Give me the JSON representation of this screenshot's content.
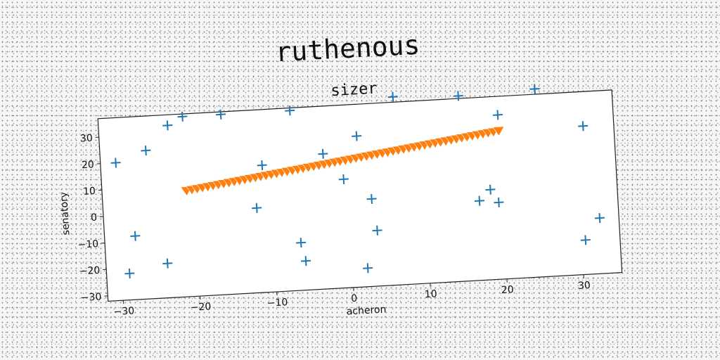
{
  "suptitle": "ruthenous",
  "chart_data": {
    "type": "scatter",
    "title": "sizer",
    "xlabel": "acheron",
    "ylabel": "senatory",
    "xlim": [
      -32,
      35
    ],
    "ylim": [
      -32,
      37
    ],
    "xticks": [
      -30,
      -20,
      -10,
      0,
      10,
      20,
      30
    ],
    "yticks": [
      -30,
      -20,
      -10,
      0,
      10,
      20,
      30
    ],
    "grid": false,
    "series": [
      {
        "marker": "plus",
        "color": "#1f77b4",
        "x": [
          -30,
          -29,
          -28,
          -26,
          -24,
          -23,
          -21,
          -16,
          -12,
          -11,
          -7,
          -6.5,
          -6,
          -3,
          -0.5,
          1.5,
          2,
          3,
          3.5,
          6.5,
          15,
          17,
          18.5,
          19.5,
          20,
          25,
          30.5,
          31,
          32.5
        ],
        "y": [
          20,
          -22,
          -8,
          24,
          -19,
          33,
          36,
          36,
          0,
          16,
          36,
          -14,
          -21,
          19,
          9,
          25,
          -25,
          1,
          -11,
          39,
          38,
          -2,
          2,
          -3,
          30,
          39,
          -19,
          24,
          -11
        ]
      },
      {
        "marker": "triangle_down",
        "color": "#ff7f0e",
        "x_range": [
          -21,
          20
        ],
        "y_range": [
          8,
          24
        ],
        "count": 60
      }
    ]
  }
}
